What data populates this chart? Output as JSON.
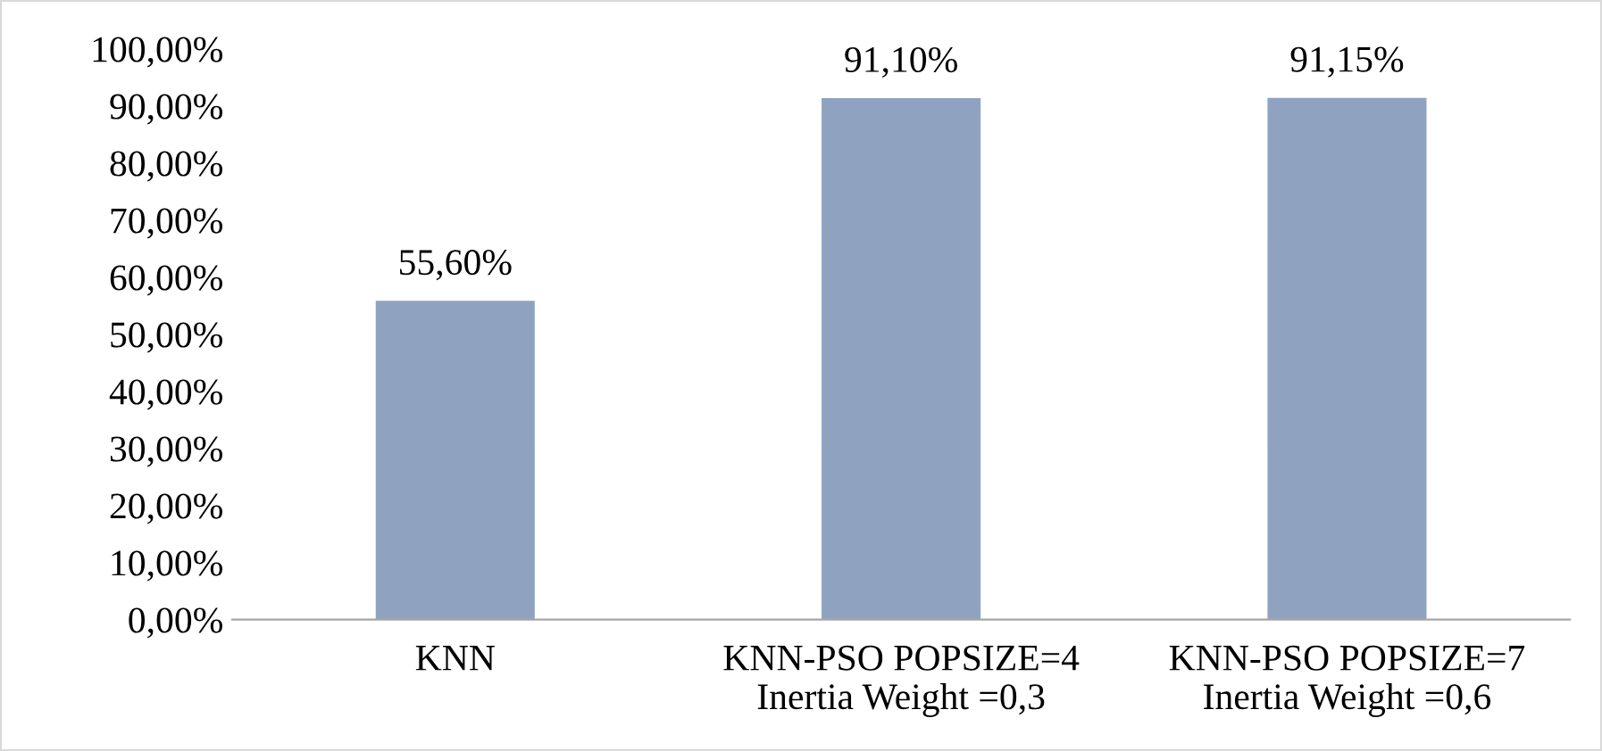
{
  "chart_data": {
    "type": "bar",
    "categories": [
      "KNN",
      "KNN-PSO POPSIZE=4\nInertia Weight =0,3",
      "KNN-PSO POPSIZE=7\nInertia Weight =0,6"
    ],
    "values": [
      55.6,
      91.1,
      91.15
    ],
    "value_labels": [
      "55,60%",
      "91,10%",
      "91,15%"
    ],
    "color": "#8fa3c0",
    "ylim": [
      0,
      100
    ],
    "yticks": [
      {
        "value": 0,
        "label": "0,00%"
      },
      {
        "value": 10,
        "label": "10,00%"
      },
      {
        "value": 20,
        "label": "20,00%"
      },
      {
        "value": 30,
        "label": "30,00%"
      },
      {
        "value": 40,
        "label": "40,00%"
      },
      {
        "value": 50,
        "label": "50,00%"
      },
      {
        "value": 60,
        "label": "60,00%"
      },
      {
        "value": 70,
        "label": "70,00%"
      },
      {
        "value": 80,
        "label": "80,00%"
      },
      {
        "value": 90,
        "label": "90,00%"
      },
      {
        "value": 100,
        "label": "100,00%"
      }
    ],
    "grid": false,
    "legend": false
  }
}
